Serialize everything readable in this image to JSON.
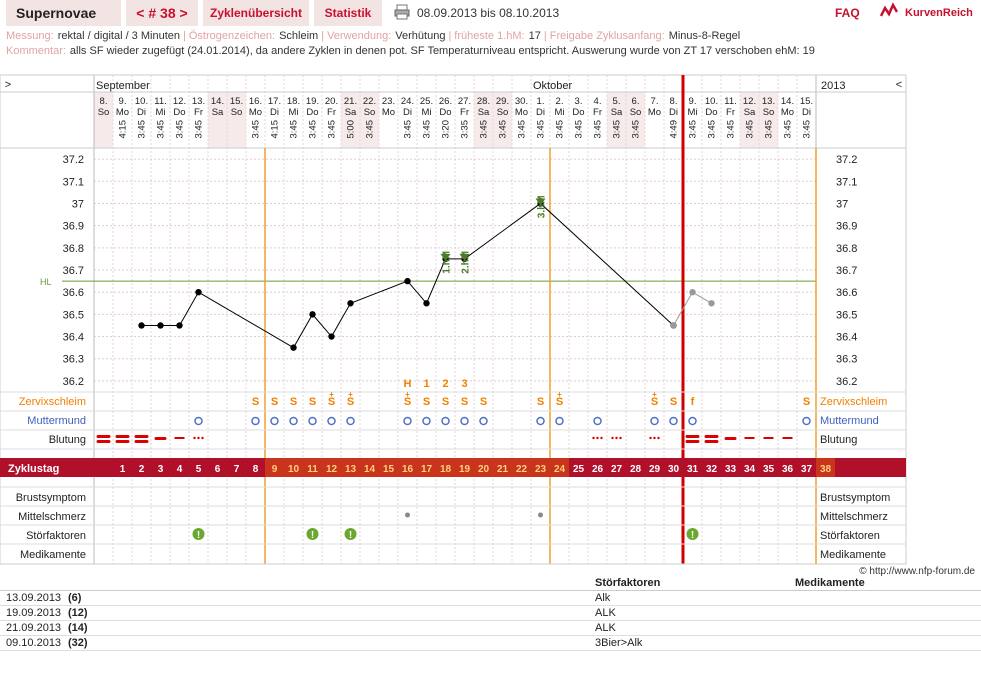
{
  "header": {
    "name": "Supernovae",
    "cycle_label": "< # 38 >",
    "overview": "Zyklenübersicht",
    "stats": "Statistik",
    "date_range": "08.09.2013 bis 08.10.2013",
    "faq": "FAQ",
    "logo_text": "KurvenReich"
  },
  "info": {
    "messung_label": "Messung:",
    "messung": "rektal / digital / 3 Minuten",
    "oestrogen_label": "Östrogenzeichen:",
    "oestrogen": "Schleim",
    "verwendung_label": "Verwendung:",
    "verwendung": "Verhütung",
    "frueheste_label": "früheste 1.hM:",
    "frueheste": "17",
    "freigabe_label": "Freigabe Zyklusanfang:",
    "freigabe": "Minus-8-Regel",
    "kommentar_label": "Kommentar:",
    "kommentar": "alls SF wieder zugefügt (24.01.2014), da andere Zyklen in denen pot. SF Temperaturniveau entspricht. Auswerung wurde von ZT 17 verschoben ehM: 19"
  },
  "chart_data": {
    "type": "line",
    "left_arrow": ">",
    "right_arrow": "<",
    "months": [
      {
        "label": "September",
        "day_index": 0
      },
      {
        "label": "Oktober",
        "day_index": 23
      }
    ],
    "year": "2013",
    "days": [
      {
        "d": "8.",
        "w": "So",
        "t": "",
        "cd": "",
        "we": true
      },
      {
        "d": "9.",
        "w": "Mo",
        "t": "4:15",
        "cd": "1"
      },
      {
        "d": "10.",
        "w": "Di",
        "t": "3:45",
        "cd": "2"
      },
      {
        "d": "11.",
        "w": "Mi",
        "t": "3:45",
        "cd": "3"
      },
      {
        "d": "12.",
        "w": "Do",
        "t": "3:45",
        "cd": "4"
      },
      {
        "d": "13.",
        "w": "Fr",
        "t": "3:45",
        "cd": "5"
      },
      {
        "d": "14.",
        "w": "Sa",
        "t": "",
        "cd": "6",
        "we": true
      },
      {
        "d": "15.",
        "w": "So",
        "t": "",
        "cd": "7",
        "we": true
      },
      {
        "d": "16.",
        "w": "Mo",
        "t": "3:45",
        "cd": "8"
      },
      {
        "d": "17.",
        "w": "Di",
        "t": "4:15",
        "cd": "9"
      },
      {
        "d": "18.",
        "w": "Mi",
        "t": "3:45",
        "cd": "10"
      },
      {
        "d": "19.",
        "w": "Do",
        "t": "3:45",
        "cd": "11"
      },
      {
        "d": "20.",
        "w": "Fr",
        "t": "3:45",
        "cd": "12"
      },
      {
        "d": "21.",
        "w": "Sa",
        "t": "5:00",
        "cd": "13",
        "we": true
      },
      {
        "d": "22.",
        "w": "So",
        "t": "3:45",
        "cd": "14",
        "we": true
      },
      {
        "d": "23.",
        "w": "Mo",
        "t": "",
        "cd": "15"
      },
      {
        "d": "24.",
        "w": "Di",
        "t": "3:45",
        "cd": "16"
      },
      {
        "d": "25.",
        "w": "Mi",
        "t": "3:45",
        "cd": "17"
      },
      {
        "d": "26.",
        "w": "Do",
        "t": "3:20",
        "cd": "18"
      },
      {
        "d": "27.",
        "w": "Fr",
        "t": "3:35",
        "cd": "19"
      },
      {
        "d": "28.",
        "w": "Sa",
        "t": "3:45",
        "cd": "20",
        "we": true
      },
      {
        "d": "29.",
        "w": "So",
        "t": "3:45",
        "cd": "21",
        "we": true
      },
      {
        "d": "30.",
        "w": "Mo",
        "t": "3:45",
        "cd": "22"
      },
      {
        "d": "1.",
        "w": "Di",
        "t": "3:45",
        "cd": "23"
      },
      {
        "d": "2.",
        "w": "Mi",
        "t": "3:45",
        "cd": "24"
      },
      {
        "d": "3.",
        "w": "Do",
        "t": "3:45",
        "cd": "25"
      },
      {
        "d": "4.",
        "w": "Fr",
        "t": "3:45",
        "cd": "26"
      },
      {
        "d": "5.",
        "w": "Sa",
        "t": "3:45",
        "cd": "27",
        "we": true
      },
      {
        "d": "6.",
        "w": "So",
        "t": "3:45",
        "cd": "28",
        "we": true
      },
      {
        "d": "7.",
        "w": "Mo",
        "t": "",
        "cd": "29"
      },
      {
        "d": "8.",
        "w": "Di",
        "t": "4:49",
        "cd": "30"
      },
      {
        "d": "9.",
        "w": "Mi",
        "t": "3:45",
        "cd": "31"
      },
      {
        "d": "10.",
        "w": "Do",
        "t": "3:45",
        "cd": "32"
      },
      {
        "d": "11.",
        "w": "Fr",
        "t": "3:45",
        "cd": "33"
      },
      {
        "d": "12.",
        "w": "Sa",
        "t": "3:45",
        "cd": "34",
        "we": true
      },
      {
        "d": "13.",
        "w": "So",
        "t": "3:45",
        "cd": "35",
        "we": true
      },
      {
        "d": "14.",
        "w": "Mo",
        "t": "3:45",
        "cd": "36"
      },
      {
        "d": "15.",
        "w": "Di",
        "t": "3:45",
        "cd": "37"
      }
    ],
    "cycle_days": [
      "1",
      "2",
      "3",
      "4",
      "5",
      "6",
      "7",
      "8",
      "9",
      "10",
      "11",
      "12",
      "13",
      "14",
      "15",
      "16",
      "17",
      "18",
      "19",
      "20",
      "21",
      "22",
      "23",
      "24",
      "25",
      "26",
      "27",
      "28",
      "29",
      "30",
      "31",
      "32",
      "33",
      "34",
      "35",
      "36",
      "37",
      "38"
    ],
    "zyklustag_label": "Zyklustag",
    "y_ticks": [
      36.2,
      36.3,
      36.4,
      36.5,
      36.6,
      36.7,
      36.8,
      36.9,
      37.0,
      37.1,
      37.2
    ],
    "y_tick_labels": [
      "36.2",
      "36.3",
      "36.4",
      "36.5",
      "36.6",
      "36.7",
      "36.8",
      "36.9",
      "37",
      "37.1",
      "37.2"
    ],
    "ylim": [
      36.15,
      37.25
    ],
    "hl_label": "HL",
    "hl_value": 36.65,
    "series": [
      {
        "values": [
          [
            2,
            36.45
          ],
          [
            3,
            36.45
          ],
          [
            4,
            36.45
          ],
          [
            5,
            36.6
          ],
          [
            10,
            36.35
          ],
          [
            11,
            36.5
          ],
          [
            12,
            36.4
          ],
          [
            13,
            36.55
          ],
          [
            16,
            36.65
          ],
          [
            17,
            36.55
          ],
          [
            18,
            36.75
          ],
          [
            19,
            36.75
          ],
          [
            23,
            37.0
          ],
          [
            30,
            36.45
          ]
        ],
        "color": "#000000"
      },
      {
        "values": [
          [
            30,
            36.45
          ],
          [
            31,
            36.6
          ],
          [
            32,
            36.55
          ]
        ],
        "color": "#999999"
      }
    ],
    "hm_marks": [
      {
        "day": 18,
        "label": "1.hM"
      },
      {
        "day": 19,
        "label": "2.hM"
      },
      {
        "day": 23,
        "label": "3.hM"
      }
    ],
    "hm_color": "#4a7a2a",
    "top_markers": [
      {
        "day": 16,
        "label": "H"
      },
      {
        "day": 17,
        "label": "1"
      },
      {
        "day": 18,
        "label": "2"
      },
      {
        "day": 19,
        "label": "3"
      }
    ],
    "zervix_label": "Zervixschleim",
    "zervix": [
      {
        "day": 8,
        "v": "S"
      },
      {
        "day": 9,
        "v": "S"
      },
      {
        "day": 10,
        "v": "S"
      },
      {
        "day": 11,
        "v": "S"
      },
      {
        "day": 12,
        "v": "S+"
      },
      {
        "day": 13,
        "v": "S+"
      },
      {
        "day": 16,
        "v": "S+"
      },
      {
        "day": 17,
        "v": "S"
      },
      {
        "day": 18,
        "v": "S"
      },
      {
        "day": 19,
        "v": "S"
      },
      {
        "day": 20,
        "v": "S"
      },
      {
        "day": 23,
        "v": "S"
      },
      {
        "day": 24,
        "v": "S+"
      },
      {
        "day": 29,
        "v": "S+"
      },
      {
        "day": 30,
        "v": "S"
      },
      {
        "day": 31,
        "v": "f"
      },
      {
        "day": 37,
        "v": "S"
      }
    ],
    "muttermund_label": "Muttermund",
    "muttermund_days": [
      5,
      8,
      9,
      10,
      11,
      12,
      13,
      16,
      17,
      18,
      19,
      20,
      23,
      24,
      26,
      29,
      30,
      31,
      37
    ],
    "blutung_label": "Blutung",
    "blutung": [
      {
        "day": 0,
        "v": "heavy"
      },
      {
        "day": 1,
        "v": "heavy"
      },
      {
        "day": 2,
        "v": "heavy"
      },
      {
        "day": 3,
        "v": "medium"
      },
      {
        "day": 4,
        "v": "light"
      },
      {
        "day": 5,
        "v": "spot"
      },
      {
        "day": 26,
        "v": "spot"
      },
      {
        "day": 27,
        "v": "spot"
      },
      {
        "day": 29,
        "v": "spot"
      },
      {
        "day": 31,
        "v": "heavy"
      },
      {
        "day": 32,
        "v": "heavy"
      },
      {
        "day": 33,
        "v": "medium"
      },
      {
        "day": 34,
        "v": "light"
      },
      {
        "day": 35,
        "v": "light"
      },
      {
        "day": 36,
        "v": "light"
      }
    ],
    "brust_label": "Brustsymptom",
    "mittel_label": "Mittelschmerz",
    "mittel_days": [
      16,
      23
    ],
    "stoer_label": "Störfaktoren",
    "stoer_days": [
      5,
      11,
      13,
      31
    ],
    "medi_label": "Medikamente",
    "copyright": "© http://www.nfp-forum.de",
    "orange_lines": [
      8,
      23,
      37
    ],
    "red_line": 31
  },
  "notes": {
    "col_stoer": "Störfaktoren",
    "col_medi": "Medikamente",
    "rows": [
      {
        "date": "13.09.2013",
        "day": "(6)",
        "stoer": "Alk"
      },
      {
        "date": "19.09.2013",
        "day": "(12)",
        "stoer": "ALK"
      },
      {
        "date": "21.09.2013",
        "day": "(14)",
        "stoer": "ALK"
      },
      {
        "date": "09.10.2013",
        "day": "(32)",
        "stoer": "3Bier>Alk"
      }
    ]
  }
}
